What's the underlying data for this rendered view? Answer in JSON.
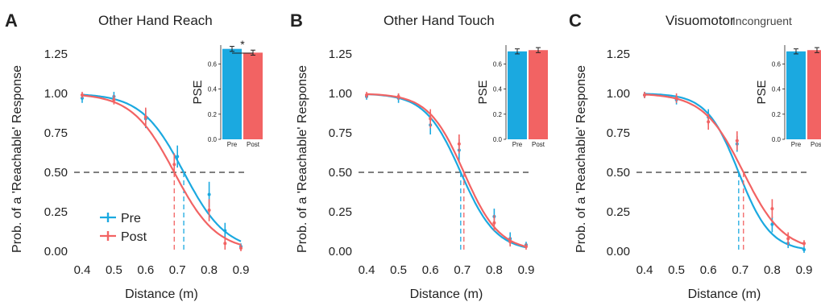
{
  "colors": {
    "pre": "#1ba9e0",
    "post": "#f26363"
  },
  "legend": {
    "pre_label": "Pre",
    "post_label": "Post"
  },
  "chart_data": [
    {
      "panel": "A",
      "title": "Other Hand Reach",
      "subtitle": "",
      "type": "line",
      "xlabel": "Distance (m)",
      "ylabel": "Prob. of a 'Reachable' Response",
      "xlim": [
        0.4,
        0.9
      ],
      "ylim": [
        0,
        1.25
      ],
      "xticks": [
        "0.4",
        "0.5",
        "0.6",
        "0.7",
        "0.8",
        "0.9"
      ],
      "yticks": [
        "0.00",
        "0.25",
        "0.50",
        "0.75",
        "1.00",
        "1.25"
      ],
      "reference_line_y": 0.5,
      "series": [
        {
          "name": "Pre",
          "pse": 0.72,
          "slope": 15,
          "points": [
            [
              0.4,
              0.97,
              0.03
            ],
            [
              0.5,
              0.98,
              0.03
            ],
            [
              0.6,
              0.84,
              0.06
            ],
            [
              0.7,
              0.6,
              0.07
            ],
            [
              0.8,
              0.36,
              0.08
            ],
            [
              0.85,
              0.13,
              0.05
            ],
            [
              0.9,
              0.03,
              0.02
            ]
          ]
        },
        {
          "name": "Post",
          "pse": 0.69,
          "slope": 15,
          "points": [
            [
              0.4,
              0.99,
              0.02
            ],
            [
              0.5,
              0.96,
              0.03
            ],
            [
              0.6,
              0.85,
              0.06
            ],
            [
              0.69,
              0.55,
              0.07
            ],
            [
              0.8,
              0.26,
              0.07
            ],
            [
              0.85,
              0.05,
              0.04
            ],
            [
              0.9,
              0.02,
              0.02
            ]
          ]
        }
      ],
      "inset": {
        "ylabel": "PSE",
        "ylim": [
          0,
          0.75
        ],
        "yticks": [
          "0.0",
          "0.2",
          "0.4",
          "0.6"
        ],
        "categories": [
          "Pre",
          "Post"
        ],
        "values": [
          0.72,
          0.69
        ],
        "errors": [
          0.02,
          0.02
        ],
        "significance": "*"
      }
    },
    {
      "panel": "B",
      "title": "Other Hand Touch",
      "subtitle": "",
      "type": "line",
      "xlabel": "Distance (m)",
      "ylabel": "Prob. of a 'Reachable' Response",
      "xlim": [
        0.4,
        0.9
      ],
      "ylim": [
        0,
        1.25
      ],
      "xticks": [
        "0.4",
        "0.5",
        "0.6",
        "0.7",
        "0.8",
        "0.9"
      ],
      "yticks": [
        "0.00",
        "0.25",
        "0.50",
        "0.75",
        "1.00",
        "1.25"
      ],
      "reference_line_y": 0.5,
      "series": [
        {
          "name": "Pre",
          "pse": 0.695,
          "slope": 18,
          "points": [
            [
              0.4,
              0.98,
              0.02
            ],
            [
              0.5,
              0.97,
              0.03
            ],
            [
              0.6,
              0.8,
              0.06
            ],
            [
              0.69,
              0.64,
              0.07
            ],
            [
              0.8,
              0.22,
              0.05
            ],
            [
              0.85,
              0.08,
              0.04
            ],
            [
              0.9,
              0.04,
              0.02
            ]
          ]
        },
        {
          "name": "Post",
          "pse": 0.705,
          "slope": 18,
          "points": [
            [
              0.4,
              0.99,
              0.02
            ],
            [
              0.5,
              0.98,
              0.02
            ],
            [
              0.6,
              0.84,
              0.06
            ],
            [
              0.69,
              0.68,
              0.06
            ],
            [
              0.8,
              0.18,
              0.05
            ],
            [
              0.85,
              0.06,
              0.03
            ],
            [
              0.9,
              0.03,
              0.02
            ]
          ]
        }
      ],
      "inset": {
        "ylabel": "PSE",
        "ylim": [
          0,
          0.75
        ],
        "yticks": [
          "0.0",
          "0.2",
          "0.4",
          "0.6"
        ],
        "categories": [
          "Pre",
          "Post"
        ],
        "values": [
          0.7,
          0.71
        ],
        "errors": [
          0.02,
          0.02
        ],
        "significance": ""
      }
    },
    {
      "panel": "C",
      "title": "Visuomotor",
      "subtitle": "Incongruent",
      "type": "line",
      "xlabel": "Distance (m)",
      "ylabel": "Prob. of a 'Reachable' Response",
      "xlim": [
        0.4,
        0.9
      ],
      "ylim": [
        0,
        1.25
      ],
      "xticks": [
        "0.4",
        "0.5",
        "0.6",
        "0.7",
        "0.8",
        "0.9"
      ],
      "yticks": [
        "0.00",
        "0.25",
        "0.50",
        "0.75",
        "1.00",
        "1.25"
      ],
      "reference_line_y": 0.5,
      "series": [
        {
          "name": "Pre",
          "pse": 0.695,
          "slope": 20,
          "points": [
            [
              0.4,
              0.99,
              0.02
            ],
            [
              0.5,
              0.96,
              0.03
            ],
            [
              0.6,
              0.85,
              0.05
            ],
            [
              0.69,
              0.68,
              0.05
            ],
            [
              0.8,
              0.17,
              0.05
            ],
            [
              0.85,
              0.05,
              0.03
            ],
            [
              0.9,
              0.01,
              0.02
            ]
          ]
        },
        {
          "name": "Post",
          "pse": 0.71,
          "slope": 16,
          "points": [
            [
              0.4,
              0.99,
              0.02
            ],
            [
              0.5,
              0.97,
              0.03
            ],
            [
              0.6,
              0.82,
              0.05
            ],
            [
              0.69,
              0.7,
              0.06
            ],
            [
              0.8,
              0.27,
              0.06
            ],
            [
              0.85,
              0.08,
              0.04
            ],
            [
              0.9,
              0.05,
              0.02
            ]
          ]
        }
      ],
      "inset": {
        "ylabel": "PSE",
        "ylim": [
          0,
          0.75
        ],
        "yticks": [
          "0.0",
          "0.2",
          "0.4",
          "0.6"
        ],
        "categories": [
          "Pre",
          "Post"
        ],
        "values": [
          0.7,
          0.71
        ],
        "errors": [
          0.02,
          0.02
        ],
        "significance": ""
      }
    }
  ]
}
